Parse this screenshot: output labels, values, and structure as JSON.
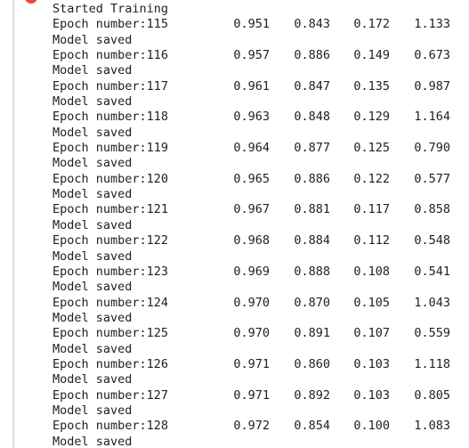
{
  "header": "Started Training",
  "epochs": [
    {
      "label": "Epoch number:115",
      "values": [
        "0.951",
        "0.843",
        "0.172",
        "1.133"
      ],
      "saved": "Model saved"
    },
    {
      "label": "Epoch number:116",
      "values": [
        "0.957",
        "0.886",
        "0.149",
        "0.673"
      ],
      "saved": "Model saved"
    },
    {
      "label": "Epoch number:117",
      "values": [
        "0.961",
        "0.847",
        "0.135",
        "0.987"
      ],
      "saved": "Model saved"
    },
    {
      "label": "Epoch number:118",
      "values": [
        "0.963",
        "0.848",
        "0.129",
        "1.164"
      ],
      "saved": "Model saved"
    },
    {
      "label": "Epoch number:119",
      "values": [
        "0.964",
        "0.877",
        "0.125",
        "0.790"
      ],
      "saved": "Model saved"
    },
    {
      "label": "Epoch number:120",
      "values": [
        "0.965",
        "0.886",
        "0.122",
        "0.577"
      ],
      "saved": "Model saved"
    },
    {
      "label": "Epoch number:121",
      "values": [
        "0.967",
        "0.881",
        "0.117",
        "0.858"
      ],
      "saved": "Model saved"
    },
    {
      "label": "Epoch number:122",
      "values": [
        "0.968",
        "0.884",
        "0.112",
        "0.548"
      ],
      "saved": "Model saved"
    },
    {
      "label": "Epoch number:123",
      "values": [
        "0.969",
        "0.888",
        "0.108",
        "0.541"
      ],
      "saved": "Model saved"
    },
    {
      "label": "Epoch number:124",
      "values": [
        "0.970",
        "0.870",
        "0.105",
        "1.043"
      ],
      "saved": "Model saved"
    },
    {
      "label": "Epoch number:125",
      "values": [
        "0.970",
        "0.891",
        "0.107",
        "0.559"
      ],
      "saved": "Model saved"
    },
    {
      "label": "Epoch number:126",
      "values": [
        "0.971",
        "0.860",
        "0.103",
        "1.118"
      ],
      "saved": "Model saved"
    },
    {
      "label": "Epoch number:127",
      "values": [
        "0.971",
        "0.892",
        "0.103",
        "0.805"
      ],
      "saved": "Model saved"
    },
    {
      "label": "Epoch number:128",
      "values": [
        "0.972",
        "0.854",
        "0.100",
        "1.083"
      ],
      "saved": "Model saved"
    }
  ],
  "colors": {
    "status_dot": "#e8453c",
    "rail": "#dadce0",
    "text": "#212121"
  },
  "icons": {
    "status": "error-status-icon"
  }
}
